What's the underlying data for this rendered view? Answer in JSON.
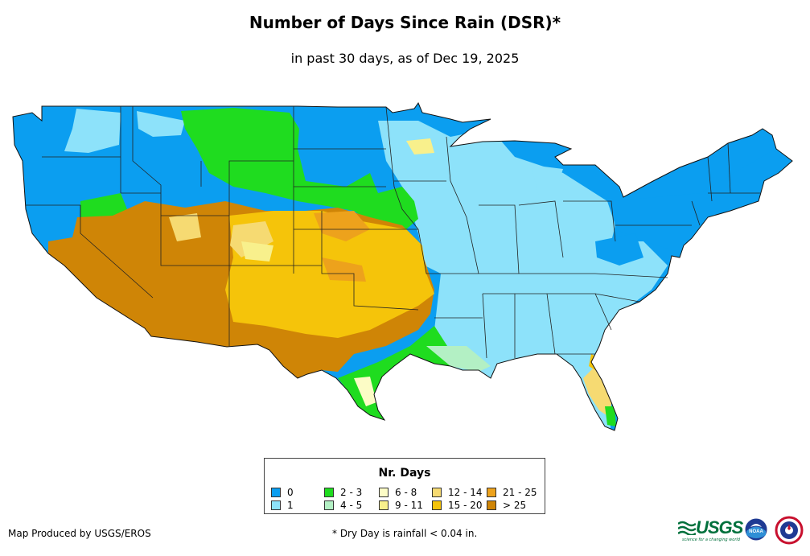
{
  "title": "Number of Days Since Rain (DSR)*",
  "subtitle": "in past 30 days, as of Dec 19, 2025",
  "legend": {
    "title": "Nr. Days",
    "items": [
      {
        "label": "0",
        "color": "#0b9ef0"
      },
      {
        "label": "1",
        "color": "#8de2fa"
      },
      {
        "label": "2 - 3",
        "color": "#1fdc1f"
      },
      {
        "label": "4 - 5",
        "color": "#b3f0c4"
      },
      {
        "label": "6 - 8",
        "color": "#fcfcc6"
      },
      {
        "label": "9 - 11",
        "color": "#f8f08c"
      },
      {
        "label": "12 - 14",
        "color": "#f6da72"
      },
      {
        "label": "15 - 20",
        "color": "#f5c40a"
      },
      {
        "label": "21 - 25",
        "color": "#eda21c"
      },
      {
        "label": "> 25",
        "color": "#cf8506"
      }
    ]
  },
  "credit": "Map Produced by USGS/EROS",
  "note": "* Dry Day is rainfall < 0.04 in.",
  "logos": {
    "usgs": "USGS",
    "usgs_tagline": "science for a changing world",
    "noaa": "NOAA"
  }
}
